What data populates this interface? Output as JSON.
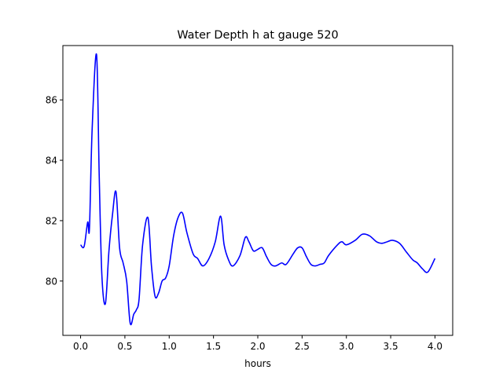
{
  "chart_data": {
    "type": "line",
    "title": "Water Depth h at gauge 520",
    "xlabel": "hours",
    "ylabel": "",
    "xlim": [
      -0.2,
      4.2
    ],
    "ylim": [
      78.2,
      87.8
    ],
    "xticks": [
      0.0,
      0.5,
      1.0,
      1.5,
      2.0,
      2.5,
      3.0,
      3.5,
      4.0
    ],
    "xtick_labels": [
      "0.0",
      "0.5",
      "1.0",
      "1.5",
      "2.0",
      "2.5",
      "3.0",
      "3.5",
      "4.0"
    ],
    "yticks": [
      80,
      82,
      84,
      86
    ],
    "ytick_labels": [
      "80",
      "82",
      "84",
      "86"
    ],
    "grid": false,
    "series": [
      {
        "color": "#0000ff",
        "x": [
          0.0,
          0.04,
          0.08,
          0.1,
          0.13,
          0.18,
          0.21,
          0.24,
          0.28,
          0.32,
          0.36,
          0.4,
          0.44,
          0.48,
          0.52,
          0.56,
          0.6,
          0.63,
          0.66,
          0.7,
          0.76,
          0.8,
          0.84,
          0.88,
          0.92,
          0.96,
          1.0,
          1.05,
          1.1,
          1.15,
          1.2,
          1.27,
          1.32,
          1.38,
          1.45,
          1.52,
          1.58,
          1.62,
          1.67,
          1.72,
          1.8,
          1.86,
          1.9,
          1.95,
          2.0,
          2.05,
          2.1,
          2.15,
          2.2,
          2.27,
          2.32,
          2.4,
          2.45,
          2.5,
          2.55,
          2.6,
          2.65,
          2.7,
          2.75,
          2.8,
          2.9,
          2.95,
          3.0,
          3.1,
          3.18,
          3.26,
          3.34,
          3.4,
          3.46,
          3.52,
          3.6,
          3.68,
          3.75,
          3.8,
          3.86,
          3.92,
          4.0
        ],
        "y": [
          81.2,
          81.15,
          81.95,
          81.75,
          85.0,
          87.5,
          83.5,
          80.2,
          79.25,
          81.0,
          82.2,
          82.95,
          81.1,
          80.6,
          80.0,
          78.6,
          78.9,
          79.05,
          79.4,
          81.2,
          82.1,
          80.5,
          79.5,
          79.6,
          80.0,
          80.1,
          80.5,
          81.5,
          82.1,
          82.25,
          81.6,
          80.9,
          80.75,
          80.5,
          80.75,
          81.3,
          82.15,
          81.2,
          80.7,
          80.5,
          80.85,
          81.45,
          81.3,
          81.0,
          81.05,
          81.1,
          80.8,
          80.55,
          80.5,
          80.6,
          80.55,
          80.9,
          81.1,
          81.1,
          80.8,
          80.55,
          80.5,
          80.55,
          80.6,
          80.85,
          81.2,
          81.3,
          81.2,
          81.35,
          81.55,
          81.5,
          81.3,
          81.25,
          81.3,
          81.35,
          81.25,
          80.95,
          80.7,
          80.6,
          80.4,
          80.3,
          80.75
        ]
      }
    ]
  }
}
